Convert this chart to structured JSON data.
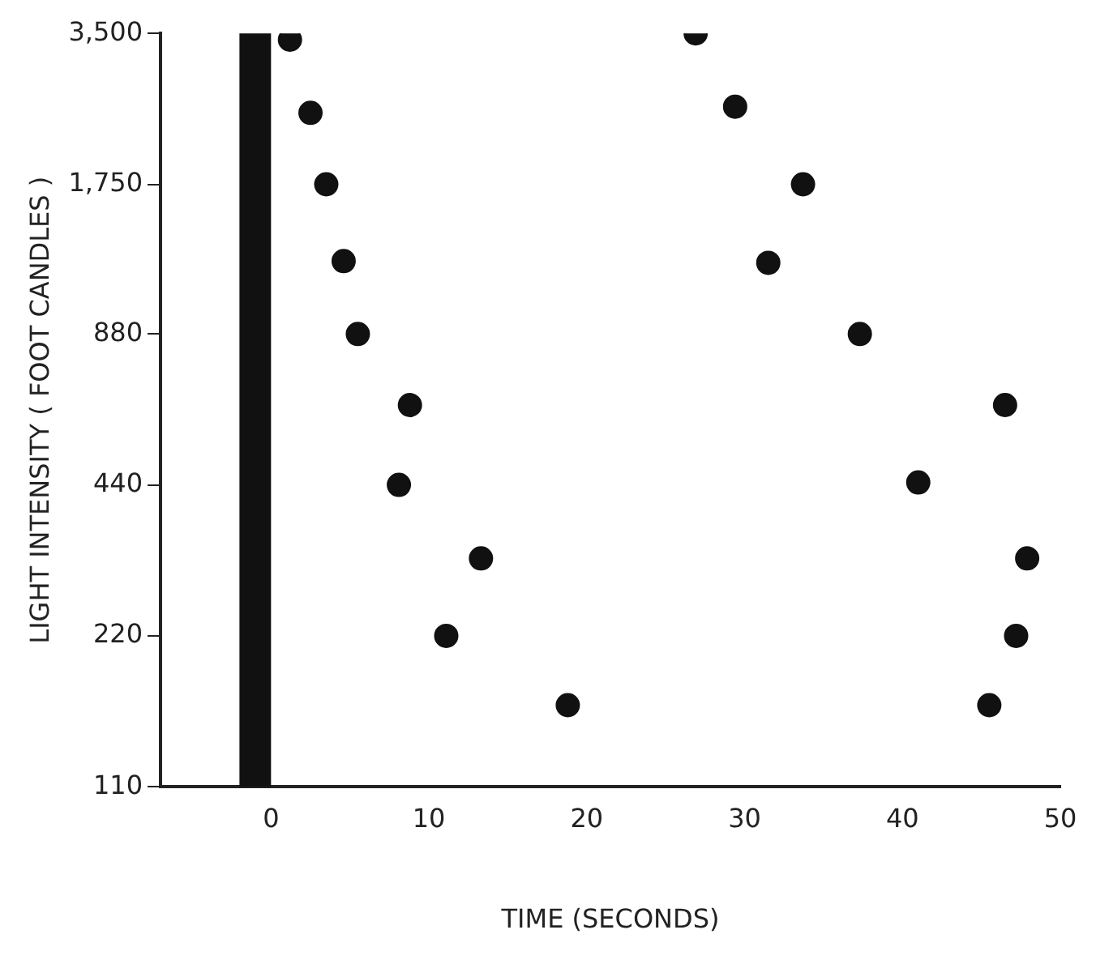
{
  "chart_data": {
    "type": "scatter",
    "xlabel": "TIME (SECONDS)",
    "ylabel": "LIGHT INTENSITY ( FOOT CANDLES )",
    "x": [
      1.2,
      2.5,
      3.5,
      4.6,
      5.5,
      8.8,
      8.1,
      13.3,
      11.1,
      18.8,
      26.9,
      29.4,
      33.7,
      31.5,
      37.3,
      41.0,
      46.5,
      47.9,
      47.2,
      45.5
    ],
    "series": [
      {
        "color": "#111111",
        "values": [
          3400,
          2430,
          1750,
          1230,
          880,
          635,
          440,
          314,
          220,
          160,
          3500,
          2500,
          1750,
          1220,
          880,
          445,
          635,
          314,
          220,
          160
        ]
      }
    ],
    "log": "y",
    "xlim": [
      -7,
      50
    ],
    "ylim": [
      110,
      3500
    ],
    "xticks": [
      0,
      10,
      20,
      30,
      40,
      50
    ],
    "yticks": [
      110,
      220,
      440,
      880,
      {
        "value": 1750,
        "label": "1,750"
      },
      {
        "value": 3500,
        "label": "3,500"
      }
    ],
    "bands": [
      {
        "axis": "x",
        "from": -2,
        "to": 0,
        "color": "#111111"
      }
    ],
    "marker": "circle",
    "grid": false,
    "legend": false
  }
}
